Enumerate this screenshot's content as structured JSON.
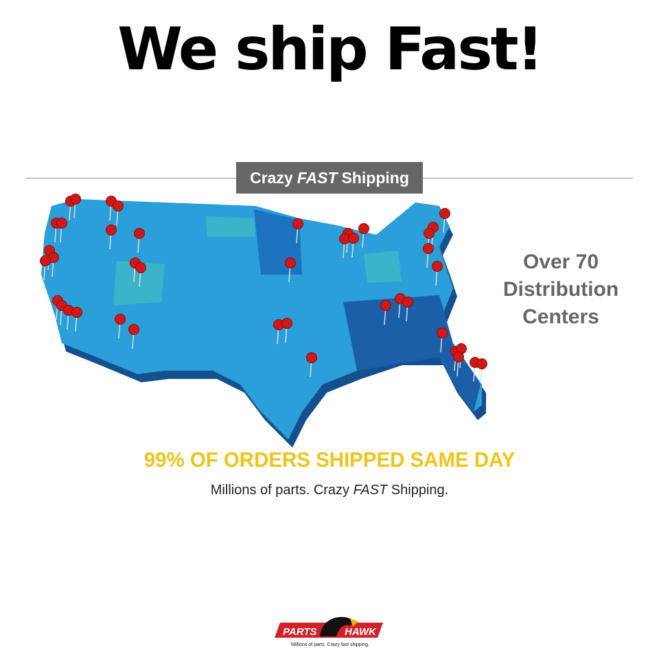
{
  "headline": "We ship Fast!",
  "banner": {
    "part1": "Crazy",
    "part2": "FAST",
    "part3": "Shipping"
  },
  "distribution": {
    "line1": "Over 70",
    "line2": "Distribution",
    "line3": "Centers"
  },
  "same_day": "99% OF ORDERS SHIPPED SAME DAY",
  "tagline": {
    "part1": "Millions of parts. Crazy ",
    "part2": "FAST",
    "part3": " Shipping."
  },
  "logo": {
    "left": "PARTS",
    "right": "HAWK",
    "slogan": "Millions of parts. Crazy fast shipping."
  },
  "colors": {
    "map_blue": "#2b9fd9",
    "map_dark": "#1b5fa8",
    "pin_red": "#d01818",
    "same_day_yellow": "#f0c419",
    "banner_gray": "#666666",
    "logo_red": "#d42027"
  }
}
